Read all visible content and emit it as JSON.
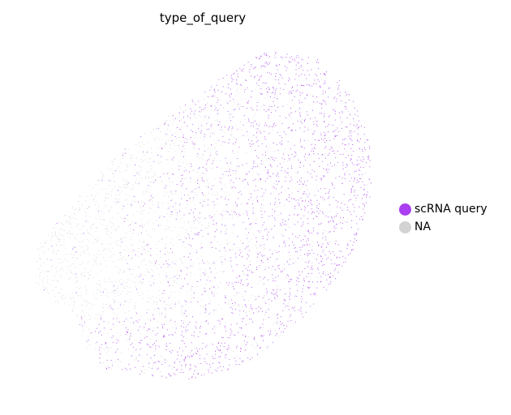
{
  "chart_data": {
    "type": "scatter",
    "title": "type_of_query",
    "xlabel": "",
    "ylabel": "",
    "grid": false,
    "legend_position": "right",
    "series": [
      {
        "name": "NA",
        "color": "#d3d3d3"
      },
      {
        "name": "scRNA query",
        "color": "#a93ff0"
      }
    ],
    "legend": [
      {
        "label": "scRNA query",
        "color": "#a93ff0"
      },
      {
        "label": "NA",
        "color": "#d3d3d3"
      }
    ]
  }
}
